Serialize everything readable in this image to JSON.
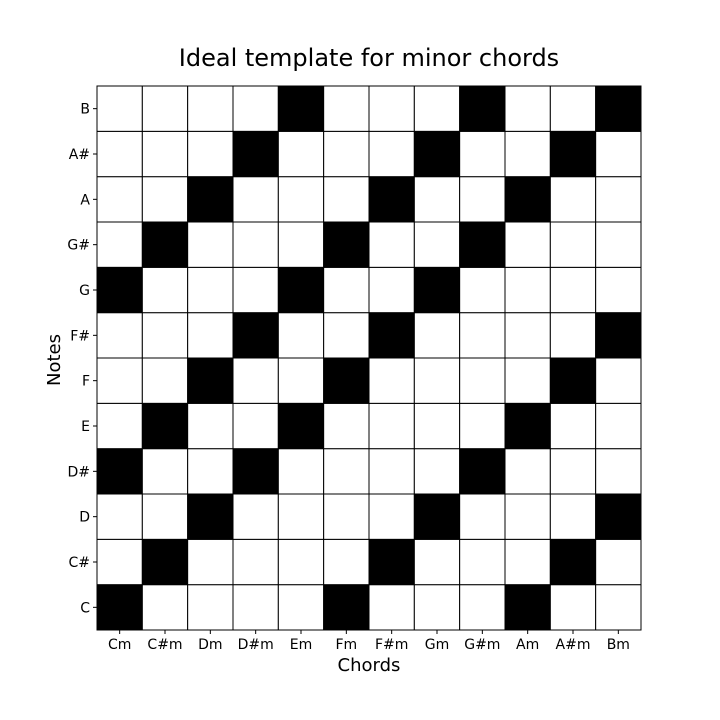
{
  "chart_data": {
    "type": "heatmap",
    "title": "Ideal template for minor chords",
    "xlabel": "Chords",
    "ylabel": "Notes",
    "x_categories": [
      "Cm",
      "C#m",
      "Dm",
      "D#m",
      "Em",
      "Fm",
      "F#m",
      "Gm",
      "G#m",
      "Am",
      "A#m",
      "Bm"
    ],
    "y_categories": [
      "C",
      "C#",
      "D",
      "D#",
      "E",
      "F",
      "F#",
      "G",
      "G#",
      "A",
      "A#",
      "B"
    ],
    "values": [
      [
        1,
        0,
        0,
        0,
        0,
        1,
        0,
        0,
        0,
        1,
        0,
        0
      ],
      [
        0,
        1,
        0,
        0,
        0,
        0,
        1,
        0,
        0,
        0,
        1,
        0
      ],
      [
        0,
        0,
        1,
        0,
        0,
        0,
        0,
        1,
        0,
        0,
        0,
        1
      ],
      [
        1,
        0,
        0,
        1,
        0,
        0,
        0,
        0,
        1,
        0,
        0,
        0
      ],
      [
        0,
        1,
        0,
        0,
        1,
        0,
        0,
        0,
        0,
        1,
        0,
        0
      ],
      [
        0,
        0,
        1,
        0,
        0,
        1,
        0,
        0,
        0,
        0,
        1,
        0
      ],
      [
        0,
        0,
        0,
        1,
        0,
        0,
        1,
        0,
        0,
        0,
        0,
        1
      ],
      [
        1,
        0,
        0,
        0,
        1,
        0,
        0,
        1,
        0,
        0,
        0,
        0
      ],
      [
        0,
        1,
        0,
        0,
        0,
        1,
        0,
        0,
        1,
        0,
        0,
        0
      ],
      [
        0,
        0,
        1,
        0,
        0,
        0,
        1,
        0,
        0,
        1,
        0,
        0
      ],
      [
        0,
        0,
        0,
        1,
        0,
        0,
        0,
        1,
        0,
        0,
        1,
        0
      ],
      [
        0,
        0,
        0,
        0,
        1,
        0,
        0,
        0,
        1,
        0,
        0,
        1
      ]
    ],
    "colors": {
      "on": "#000000",
      "off": "#ffffff",
      "grid": "#000000"
    }
  }
}
